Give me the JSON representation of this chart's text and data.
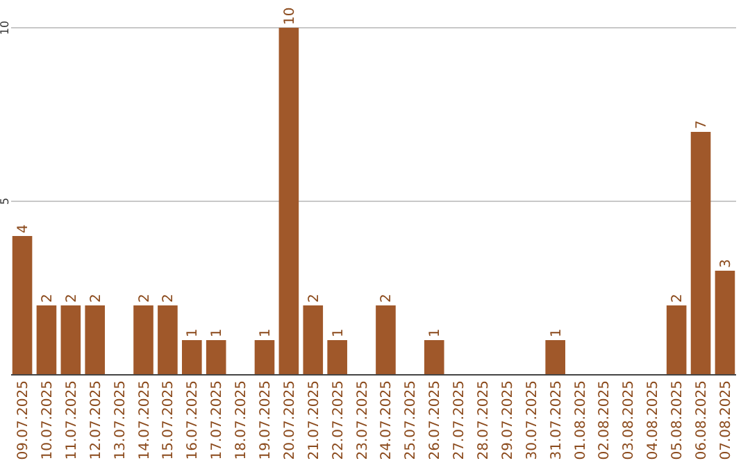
{
  "chart_data": {
    "type": "bar",
    "categories": [
      "09.07.2025",
      "10.07.2025",
      "11.07.2025",
      "12.07.2025",
      "13.07.2025",
      "14.07.2025",
      "15.07.2025",
      "16.07.2025",
      "17.07.2025",
      "18.07.2025",
      "19.07.2025",
      "20.07.2025",
      "21.07.2025",
      "22.07.2025",
      "23.07.2025",
      "24.07.2025",
      "25.07.2025",
      "26.07.2025",
      "27.07.2025",
      "28.07.2025",
      "29.07.2025",
      "30.07.2025",
      "31.07.2025",
      "01.08.2025",
      "02.08.2025",
      "03.08.2025",
      "04.08.2025",
      "05.08.2025",
      "06.08.2025",
      "07.08.2025"
    ],
    "values": [
      4,
      2,
      2,
      2,
      0,
      2,
      2,
      1,
      1,
      0,
      1,
      10,
      2,
      1,
      0,
      2,
      0,
      1,
      0,
      0,
      0,
      0,
      1,
      0,
      0,
      0,
      0,
      2,
      7,
      3
    ],
    "value_labels": [
      "4",
      "2",
      "2",
      "2",
      null,
      "2",
      "2",
      "1",
      "1",
      null,
      "1",
      "10",
      "2",
      "1",
      null,
      "2",
      null,
      "1",
      null,
      null,
      null,
      null,
      "1",
      null,
      null,
      null,
      null,
      "2",
      "7",
      "3"
    ],
    "color": "#a0582a",
    "ylim": [
      0,
      10
    ],
    "yticks": [
      5,
      10
    ],
    "grid": "y"
  }
}
